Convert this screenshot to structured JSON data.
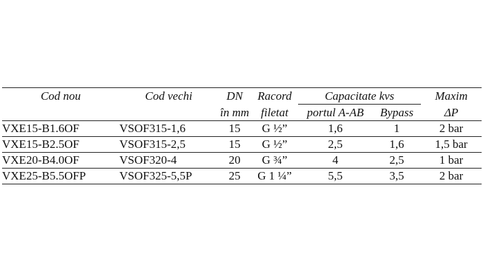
{
  "headers": {
    "cod_nou": "Cod nou",
    "cod_vechi": "Cod vechi",
    "dn_top": "DN",
    "dn_bottom": "în mm",
    "racord_top": "Racord",
    "racord_bottom": "filetat",
    "capacitate": "Capacitate kvs",
    "portul": "portul A-AB",
    "bypass": "Bypass",
    "maxim_top": "Maxim",
    "maxim_bottom": "ΔP"
  },
  "rows": [
    {
      "cod_nou": "VXE15-B1.6OF",
      "cod_vechi": "VSOF315-1,6",
      "dn": "15",
      "racord": "G ½”",
      "portul": "1,6",
      "bypass": "1",
      "maxim": "2 bar"
    },
    {
      "cod_nou": "VXE15-B2.5OF",
      "cod_vechi": "VSOF315-2,5",
      "dn": "15",
      "racord": "G ½”",
      "portul": "2,5",
      "bypass": "1,6",
      "maxim": "1,5 bar"
    },
    {
      "cod_nou": "VXE20-B4.0OF",
      "cod_vechi": "VSOF320-4",
      "dn": "20",
      "racord": "G ¾”",
      "portul": "4",
      "bypass": "2,5",
      "maxim": "1 bar"
    },
    {
      "cod_nou": "VXE25-B5.5OFP",
      "cod_vechi": "VSOF325-5,5P",
      "dn": "25",
      "racord": "G 1 ¼”",
      "portul": "5,5",
      "bypass": "3,5",
      "maxim": "2 bar"
    }
  ]
}
